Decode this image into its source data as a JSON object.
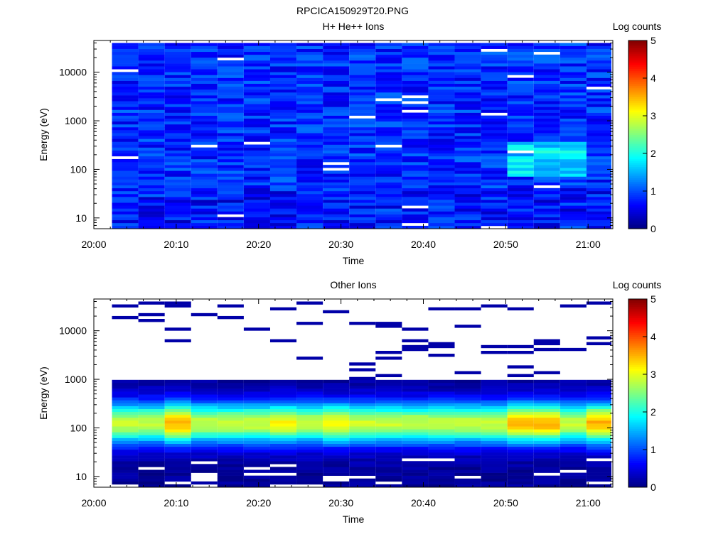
{
  "figure_title": "RPCICA150929T20.PNG",
  "chart_data": [
    {
      "type": "heatmap",
      "title": "H+ He++ Ions",
      "xlabel": "Time",
      "ylabel": "Energy (eV)",
      "x_ticks": [
        "20:00",
        "20:10",
        "20:20",
        "20:30",
        "20:40",
        "20:50",
        "21:00"
      ],
      "x_tick_minutes": [
        0,
        10,
        20,
        30,
        40,
        50,
        60
      ],
      "xlim_minutes": [
        0,
        63
      ],
      "y_scale": "log",
      "ylim": [
        6,
        45000
      ],
      "y_ticks": [
        10,
        100,
        1000,
        10000
      ],
      "y_tick_labels": [
        "10",
        "100",
        "1000",
        "10000"
      ],
      "data_start_minute": 2.2,
      "time_bin_minutes": 3.2,
      "n_time_bins": 19,
      "energy_range_ev": [
        6,
        40000
      ],
      "n_energy_bins": 64,
      "value_range": "mostly 0.3 to 1.4 log counts; enhanced 1.5 to 2.2 near 100-200 eV at 20:50-20:58",
      "colorbar": {
        "label": "Log counts",
        "ticks": [
          "0",
          "1",
          "2",
          "3",
          "4",
          "5"
        ],
        "range": [
          0,
          5
        ],
        "colormap": "jet"
      }
    },
    {
      "type": "heatmap",
      "title": "Other Ions",
      "xlabel": "Time",
      "ylabel": "Energy (eV)",
      "x_ticks": [
        "20:00",
        "20:10",
        "20:20",
        "20:30",
        "20:40",
        "20:50",
        "21:00"
      ],
      "x_tick_minutes": [
        0,
        10,
        20,
        30,
        40,
        50,
        60
      ],
      "xlim_minutes": [
        0,
        63
      ],
      "y_scale": "log",
      "ylim": [
        6,
        45000
      ],
      "y_ticks": [
        10,
        100,
        1000,
        10000
      ],
      "y_tick_labels": [
        "10",
        "100",
        "1000",
        "10000"
      ],
      "data_start_minute": 2.2,
      "time_bin_minutes": 3.2,
      "n_time_bins": 19,
      "energy_range_ev": [
        6,
        40000
      ],
      "n_energy_bins": 64,
      "peak_energy_ev": 130,
      "peak_log_counts_range": [
        2.6,
        3.6
      ],
      "value_range": "peak near 100-150 eV, strongest at 20:08-20:11 and 20:50-21:03; sparse counts above 2000 eV",
      "colorbar": {
        "label": "Log counts",
        "ticks": [
          "0",
          "1",
          "2",
          "3",
          "4",
          "5"
        ],
        "range": [
          0,
          5
        ],
        "colormap": "jet"
      }
    }
  ]
}
